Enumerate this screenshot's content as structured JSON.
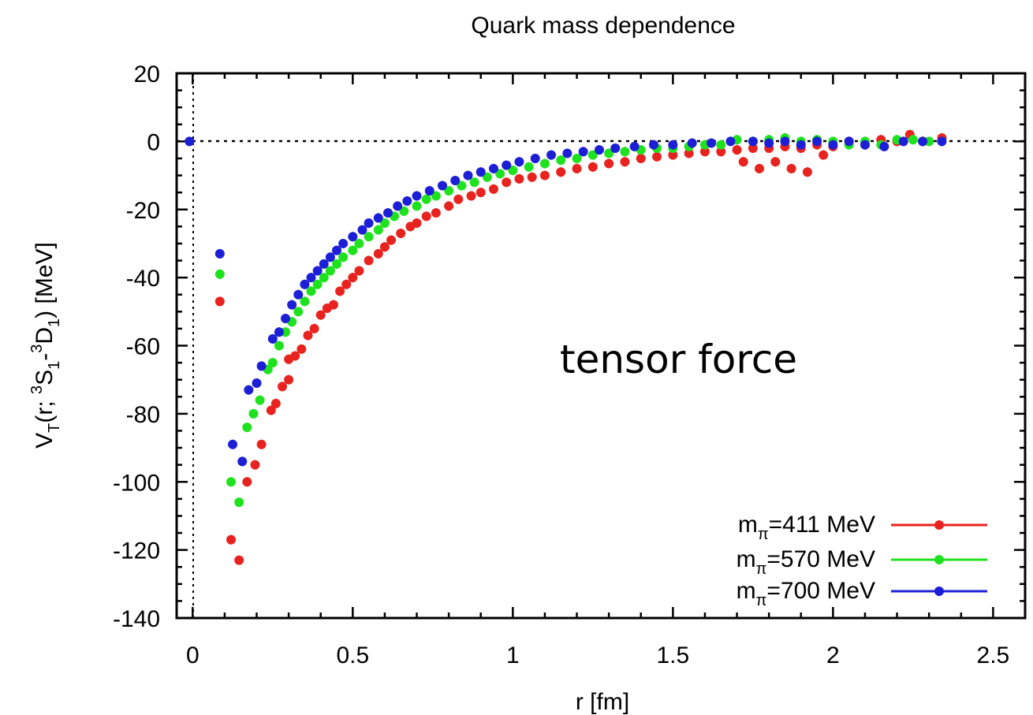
{
  "chart_data": {
    "type": "scatter",
    "title": "Quark mass dependence",
    "xlabel": "r [fm]",
    "ylabel": {
      "pre": "V",
      "pre_sub": "T",
      "mid1": "(r; ",
      "sup1": "3",
      "s": "S",
      "s_sub": "1",
      "dash": "-",
      "sup2": "3",
      "d": "D",
      "d_sub": "1",
      "post": ") [MeV]"
    },
    "xlim": [
      -0.05,
      2.6
    ],
    "ylim": [
      -140,
      20
    ],
    "xticks": [
      0,
      0.5,
      1,
      1.5,
      2,
      2.5
    ],
    "xtick_labels": [
      "0",
      "0.5",
      "1",
      "1.5",
      "2",
      "2.5"
    ],
    "yticks": [
      20,
      0,
      -20,
      -40,
      -60,
      -80,
      -100,
      -120,
      -140
    ],
    "ytick_labels": [
      "20",
      "0",
      "-20",
      "-40",
      "-60",
      "-80",
      "-100",
      "-120",
      "-140"
    ],
    "annotation": "tensor force",
    "legend_position": "bottom-right",
    "grid": false,
    "series": [
      {
        "legend_prefix": "m",
        "legend_sub": "π",
        "legend_suffix": "=411 MeV",
        "color": "#e8231f",
        "points": [
          [
            0.085,
            -47
          ],
          [
            0.12,
            -117
          ],
          [
            0.145,
            -123
          ],
          [
            0.17,
            -100
          ],
          [
            0.195,
            -95
          ],
          [
            0.215,
            -89
          ],
          [
            0.245,
            -79
          ],
          [
            0.26,
            -77
          ],
          [
            0.28,
            -72
          ],
          [
            0.3,
            -70
          ],
          [
            0.3,
            -64
          ],
          [
            0.32,
            -63
          ],
          [
            0.34,
            -61
          ],
          [
            0.36,
            -57
          ],
          [
            0.38,
            -55
          ],
          [
            0.4,
            -51
          ],
          [
            0.42,
            -49
          ],
          [
            0.44,
            -48
          ],
          [
            0.46,
            -44
          ],
          [
            0.48,
            -42
          ],
          [
            0.5,
            -40
          ],
          [
            0.52,
            -38
          ],
          [
            0.55,
            -35
          ],
          [
            0.58,
            -33
          ],
          [
            0.6,
            -31
          ],
          [
            0.62,
            -29
          ],
          [
            0.65,
            -27
          ],
          [
            0.68,
            -25
          ],
          [
            0.7,
            -24
          ],
          [
            0.73,
            -22
          ],
          [
            0.76,
            -21
          ],
          [
            0.8,
            -19
          ],
          [
            0.83,
            -17
          ],
          [
            0.87,
            -16
          ],
          [
            0.9,
            -15
          ],
          [
            0.94,
            -14
          ],
          [
            0.98,
            -12
          ],
          [
            1.02,
            -11
          ],
          [
            1.06,
            -10.5
          ],
          [
            1.1,
            -10
          ],
          [
            1.15,
            -9
          ],
          [
            1.2,
            -8
          ],
          [
            1.25,
            -7.5
          ],
          [
            1.3,
            -6.5
          ],
          [
            1.35,
            -6
          ],
          [
            1.4,
            -5
          ],
          [
            1.45,
            -4.5
          ],
          [
            1.5,
            -4
          ],
          [
            1.55,
            -3.5
          ],
          [
            1.6,
            -3
          ],
          [
            1.65,
            -3
          ],
          [
            1.7,
            -2.5
          ],
          [
            1.72,
            -6
          ],
          [
            1.75,
            -2
          ],
          [
            1.77,
            -8
          ],
          [
            1.8,
            -2
          ],
          [
            1.82,
            -6
          ],
          [
            1.85,
            -1.5
          ],
          [
            1.87,
            -8
          ],
          [
            1.9,
            -2
          ],
          [
            1.92,
            -9
          ],
          [
            1.95,
            -1
          ],
          [
            1.97,
            -4
          ],
          [
            2.0,
            -1.5
          ],
          [
            2.05,
            0
          ],
          [
            2.1,
            -1
          ],
          [
            2.15,
            0.5
          ],
          [
            2.2,
            0
          ],
          [
            2.24,
            2
          ],
          [
            2.28,
            0
          ],
          [
            2.34,
            1
          ]
        ]
      },
      {
        "legend_prefix": "m",
        "legend_sub": "π",
        "legend_suffix": "=570 MeV",
        "color": "#1fe21f",
        "points": [
          [
            0.085,
            -39
          ],
          [
            0.12,
            -100
          ],
          [
            0.145,
            -106
          ],
          [
            0.17,
            -84
          ],
          [
            0.19,
            -80
          ],
          [
            0.21,
            -76
          ],
          [
            0.235,
            -67
          ],
          [
            0.25,
            -65
          ],
          [
            0.27,
            -60
          ],
          [
            0.29,
            -56
          ],
          [
            0.31,
            -53
          ],
          [
            0.33,
            -50
          ],
          [
            0.35,
            -47
          ],
          [
            0.37,
            -44
          ],
          [
            0.39,
            -42
          ],
          [
            0.41,
            -40
          ],
          [
            0.43,
            -38
          ],
          [
            0.45,
            -36
          ],
          [
            0.47,
            -34
          ],
          [
            0.5,
            -32
          ],
          [
            0.52,
            -30
          ],
          [
            0.55,
            -28
          ],
          [
            0.58,
            -26
          ],
          [
            0.6,
            -24
          ],
          [
            0.63,
            -22
          ],
          [
            0.66,
            -20.5
          ],
          [
            0.7,
            -19
          ],
          [
            0.73,
            -17
          ],
          [
            0.76,
            -16
          ],
          [
            0.8,
            -14.5
          ],
          [
            0.84,
            -13
          ],
          [
            0.88,
            -12
          ],
          [
            0.92,
            -10.5
          ],
          [
            0.96,
            -9.5
          ],
          [
            1.0,
            -8.5
          ],
          [
            1.05,
            -7.5
          ],
          [
            1.1,
            -6.5
          ],
          [
            1.15,
            -5.5
          ],
          [
            1.2,
            -5
          ],
          [
            1.25,
            -4
          ],
          [
            1.3,
            -3.5
          ],
          [
            1.35,
            -3
          ],
          [
            1.4,
            -2.5
          ],
          [
            1.45,
            -2
          ],
          [
            1.5,
            -2
          ],
          [
            1.55,
            -1.5
          ],
          [
            1.6,
            -1
          ],
          [
            1.65,
            -1
          ],
          [
            1.7,
            0.5
          ],
          [
            1.75,
            0
          ],
          [
            1.8,
            0.5
          ],
          [
            1.85,
            1
          ],
          [
            1.9,
            0
          ],
          [
            1.95,
            0.5
          ],
          [
            2.0,
            0
          ],
          [
            2.05,
            -1
          ],
          [
            2.1,
            0
          ],
          [
            2.15,
            -1
          ],
          [
            2.2,
            0.5
          ],
          [
            2.25,
            0.5
          ],
          [
            2.3,
            0
          ]
        ]
      },
      {
        "legend_prefix": "m",
        "legend_sub": "π",
        "legend_suffix": "=700 MeV",
        "color": "#1d1fd6",
        "points": [
          [
            -0.01,
            0
          ],
          [
            0.085,
            -33
          ],
          [
            0.125,
            -89
          ],
          [
            0.155,
            -94
          ],
          [
            0.175,
            -73
          ],
          [
            0.2,
            -71
          ],
          [
            0.215,
            -66
          ],
          [
            0.25,
            -58
          ],
          [
            0.27,
            -56
          ],
          [
            0.29,
            -52
          ],
          [
            0.31,
            -48
          ],
          [
            0.33,
            -45
          ],
          [
            0.35,
            -42
          ],
          [
            0.37,
            -40
          ],
          [
            0.39,
            -38
          ],
          [
            0.41,
            -36
          ],
          [
            0.43,
            -34
          ],
          [
            0.45,
            -32
          ],
          [
            0.47,
            -30
          ],
          [
            0.5,
            -28
          ],
          [
            0.53,
            -26
          ],
          [
            0.55,
            -24
          ],
          [
            0.58,
            -22.5
          ],
          [
            0.61,
            -21
          ],
          [
            0.64,
            -19
          ],
          [
            0.67,
            -17.5
          ],
          [
            0.7,
            -16
          ],
          [
            0.74,
            -14.5
          ],
          [
            0.78,
            -13
          ],
          [
            0.82,
            -11.5
          ],
          [
            0.86,
            -10
          ],
          [
            0.9,
            -9
          ],
          [
            0.94,
            -8
          ],
          [
            0.98,
            -7
          ],
          [
            1.02,
            -6
          ],
          [
            1.07,
            -5
          ],
          [
            1.12,
            -4
          ],
          [
            1.17,
            -3.5
          ],
          [
            1.22,
            -3
          ],
          [
            1.27,
            -2.5
          ],
          [
            1.32,
            -2
          ],
          [
            1.38,
            -1.5
          ],
          [
            1.44,
            -1
          ],
          [
            1.5,
            -1
          ],
          [
            1.56,
            -0.5
          ],
          [
            1.62,
            -0.5
          ],
          [
            1.68,
            0
          ],
          [
            1.75,
            0
          ],
          [
            1.8,
            -0.5
          ],
          [
            1.85,
            0
          ],
          [
            1.9,
            -1
          ],
          [
            1.95,
            0
          ],
          [
            2.0,
            -1
          ],
          [
            2.05,
            0
          ],
          [
            2.1,
            -1
          ],
          [
            2.16,
            -1.5
          ],
          [
            2.22,
            0
          ],
          [
            2.28,
            0
          ],
          [
            2.34,
            0
          ]
        ]
      }
    ]
  }
}
